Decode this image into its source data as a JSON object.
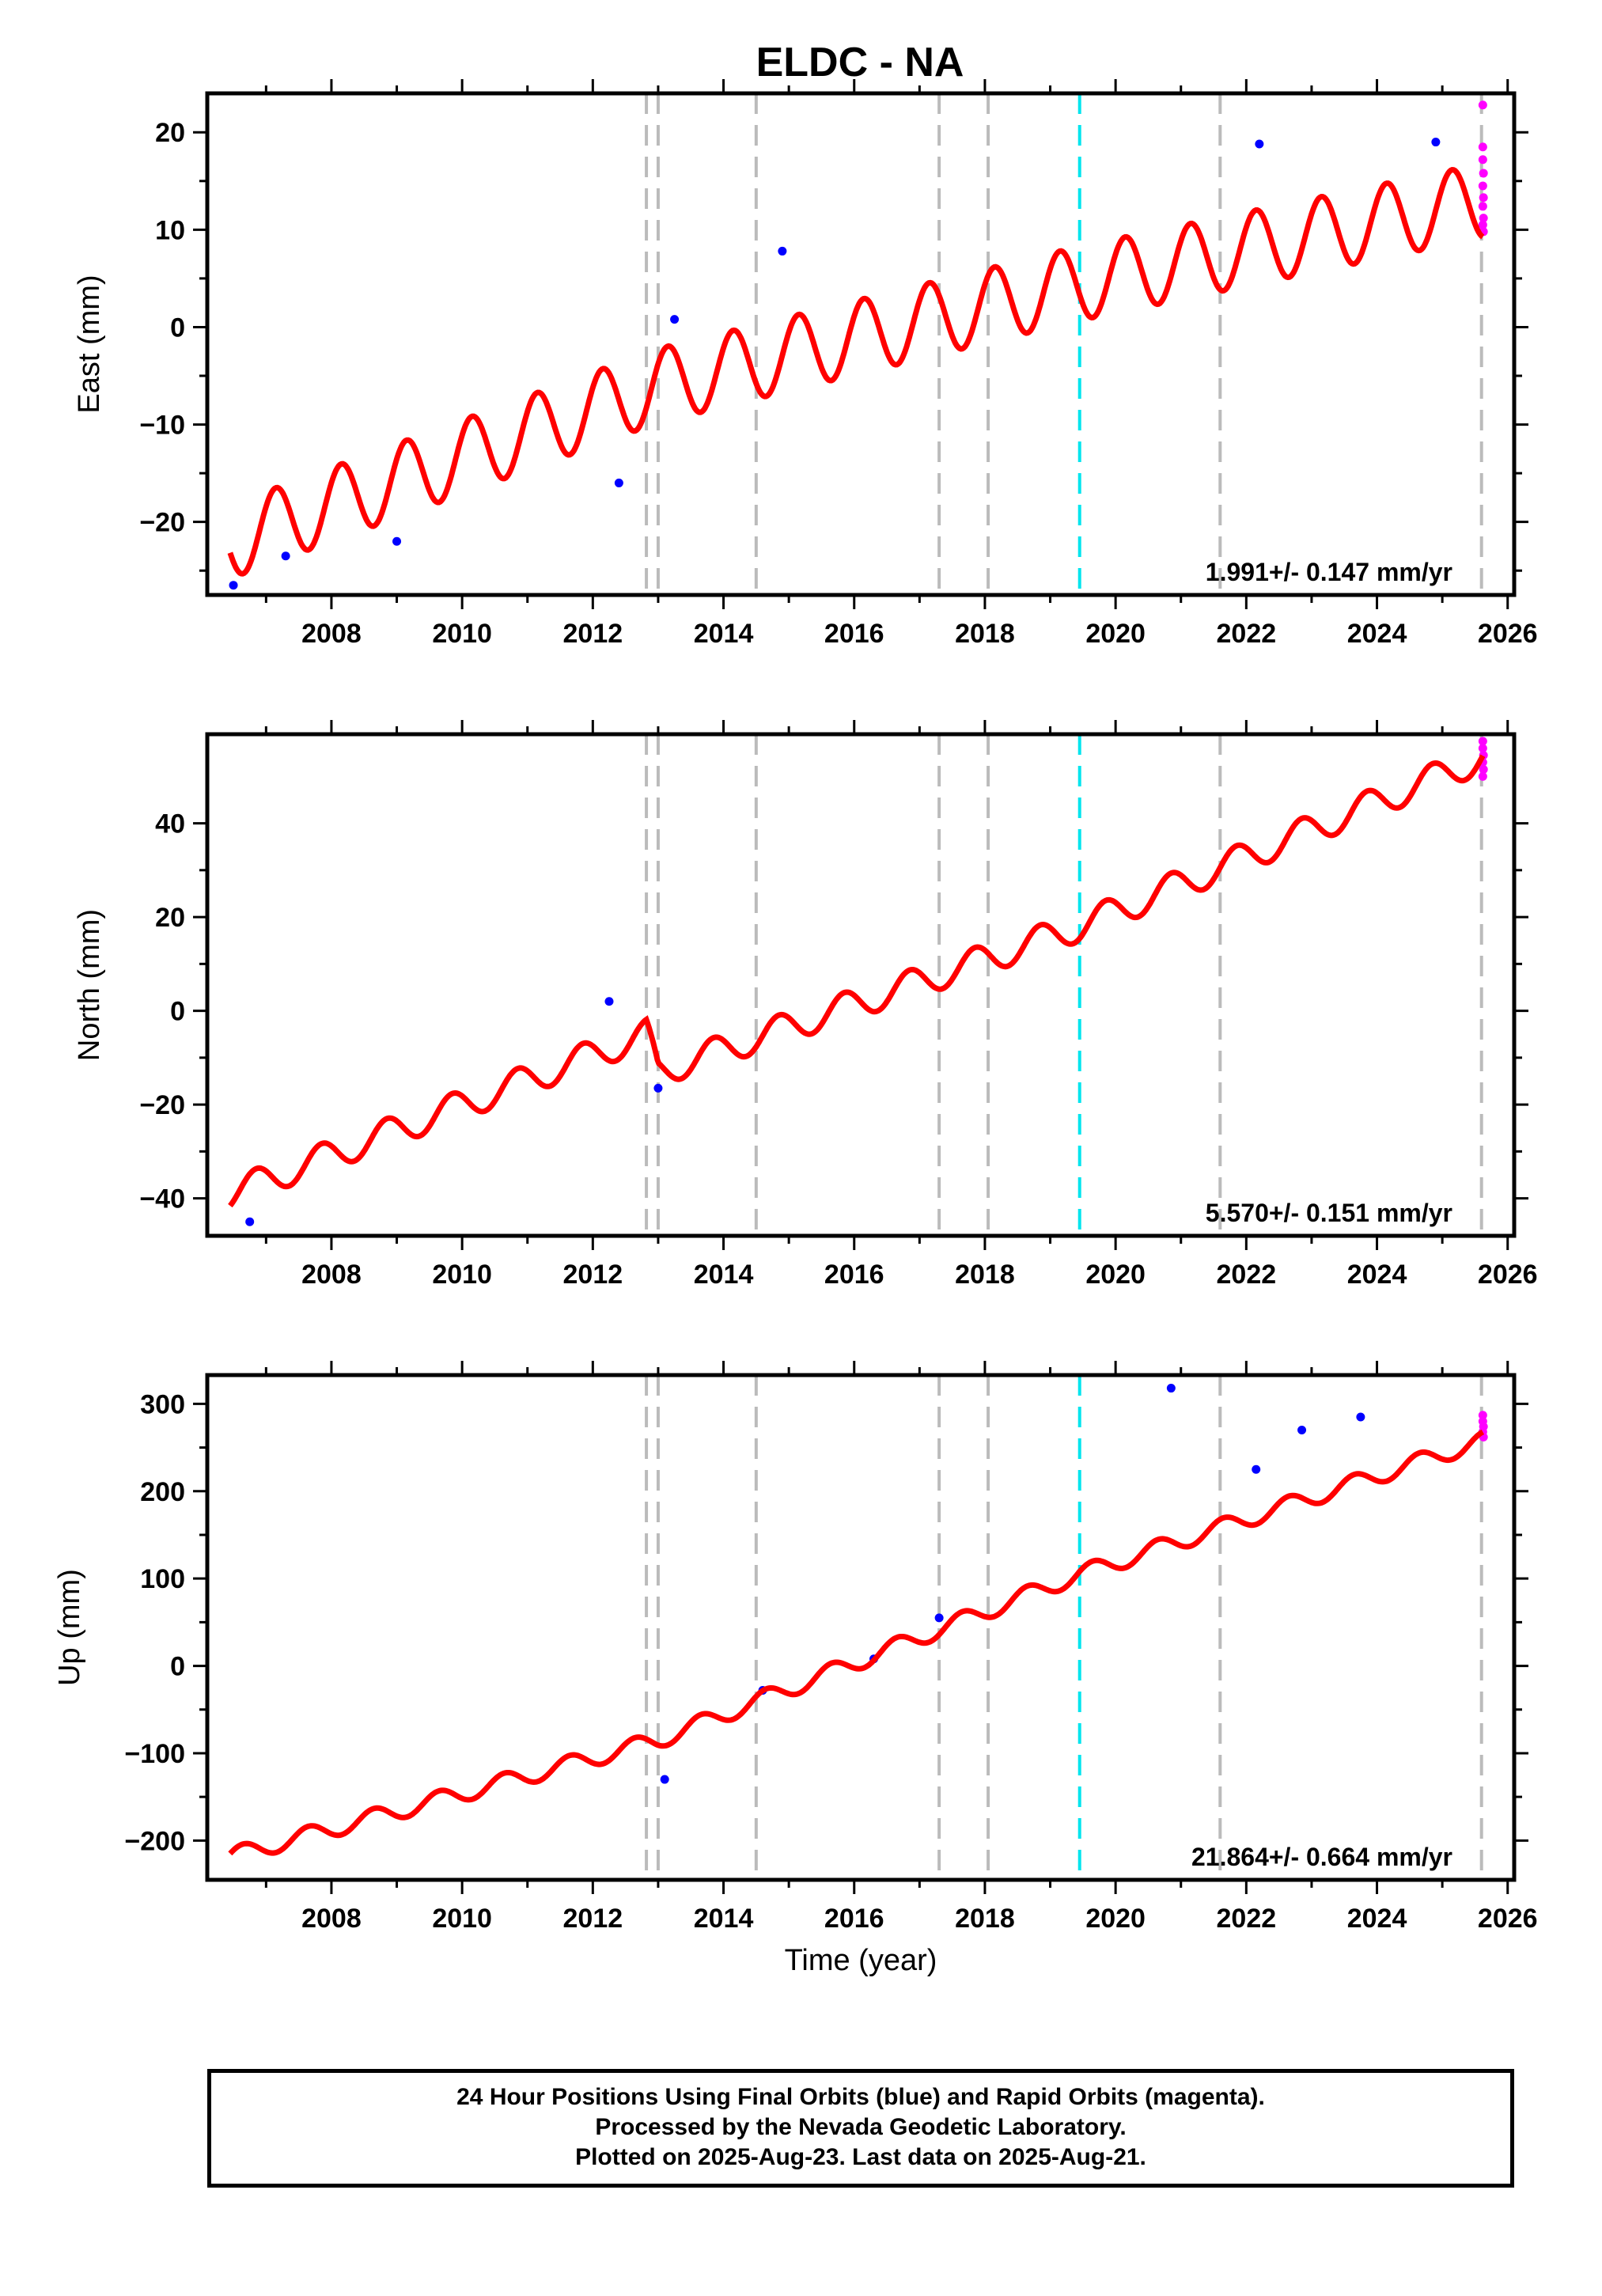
{
  "title": "ELDC - NA",
  "colors": {
    "final_orbits": "#0000ff",
    "rapid_orbits": "#ff00ff",
    "model": "#ff0000",
    "equipment_change": "#bbbbbb",
    "earthquake": "#00e5ee"
  },
  "event_lines": {
    "gray_dashed": [
      2012.82,
      2013.0,
      2014.5,
      2017.3,
      2018.05,
      2021.6,
      2025.6
    ],
    "cyan_dashed": [
      2019.45
    ]
  },
  "chart_data": [
    {
      "type": "scatter",
      "ylabel": "East (mm)",
      "xlabel": "",
      "xlim": [
        2006.1,
        2026.1
      ],
      "ylim": [
        -27.5,
        24
      ],
      "xticks": [
        "2008",
        "2010",
        "2012",
        "2014",
        "2016",
        "2018",
        "2020",
        "2022",
        "2024",
        "2026"
      ],
      "yticks": [
        "-20",
        "-10",
        "0",
        "10",
        "20"
      ],
      "rate_label": "1.991+/- 0.147 mm/yr",
      "model": {
        "start": 2006.45,
        "end": 2025.62,
        "anchors": [
          [
            2006.45,
            -22.0
          ],
          [
            2013.0,
            -6.0
          ],
          [
            2019.45,
            4.5
          ],
          [
            2025.62,
            13.0
          ]
        ],
        "seasonal_amplitude": 3.8,
        "seasonal_phase_year": 2006.9
      },
      "scatter_noise": 1.6,
      "outliers": [
        [
          2006.5,
          -26.5
        ],
        [
          2007.3,
          -23.5
        ],
        [
          2009.0,
          -22.0
        ],
        [
          2012.4,
          -16.0
        ],
        [
          2013.25,
          0.8
        ],
        [
          2014.9,
          7.8
        ],
        [
          2022.2,
          18.8
        ],
        [
          2024.9,
          19.0
        ]
      ],
      "rapid_points": [
        [
          2025.62,
          22.8
        ],
        [
          2025.62,
          18.5
        ],
        [
          2025.62,
          17.2
        ],
        [
          2025.63,
          15.8
        ],
        [
          2025.62,
          14.5
        ],
        [
          2025.63,
          13.3
        ],
        [
          2025.62,
          12.4
        ],
        [
          2025.63,
          11.2
        ],
        [
          2025.62,
          10.5
        ],
        [
          2025.63,
          9.8
        ]
      ]
    },
    {
      "type": "scatter",
      "ylabel": "North (mm)",
      "xlabel": "",
      "xlim": [
        2006.1,
        2026.1
      ],
      "ylim": [
        -48,
        59
      ],
      "xticks": [
        "2008",
        "2010",
        "2012",
        "2014",
        "2016",
        "2018",
        "2020",
        "2022",
        "2024",
        "2026"
      ],
      "yticks": [
        "-40",
        "-20",
        "0",
        "20",
        "40"
      ],
      "rate_label": "5.570+/- 0.151 mm/yr",
      "model": {
        "start": 2006.45,
        "end": 2025.62,
        "anchors": [
          [
            2006.45,
            -39.0
          ],
          [
            2012.82,
            -5.0
          ],
          [
            2013.0,
            -13.0
          ],
          [
            2019.45,
            18.0
          ],
          [
            2025.62,
            54.0
          ]
        ],
        "seasonal_amplitude": 3.2,
        "seasonal_phase_year": 2006.6
      },
      "scatter_noise": 1.7,
      "outliers": [
        [
          2006.75,
          -45.0
        ],
        [
          2012.25,
          2.0
        ],
        [
          2013.0,
          -16.5
        ]
      ],
      "rapid_points": [
        [
          2025.62,
          57.5
        ],
        [
          2025.62,
          56.0
        ],
        [
          2025.63,
          54.5
        ],
        [
          2025.62,
          53.0
        ],
        [
          2025.63,
          51.5
        ],
        [
          2025.62,
          50.0
        ]
      ]
    },
    {
      "type": "scatter",
      "ylabel": "Up (mm)",
      "xlabel": "Time (year)",
      "xlim": [
        2006.1,
        2026.1
      ],
      "ylim": [
        -245,
        333
      ],
      "xticks": [
        "2008",
        "2010",
        "2012",
        "2014",
        "2016",
        "2018",
        "2020",
        "2022",
        "2024",
        "2026"
      ],
      "yticks": [
        "-200",
        "-100",
        "0",
        "100",
        "200",
        "300"
      ],
      "rate_label": "21.864+/- 0.664 mm/yr",
      "model": {
        "start": 2006.45,
        "end": 2025.62,
        "anchors": [
          [
            2006.45,
            -218.0
          ],
          [
            2013.0,
            -85.0
          ],
          [
            2019.45,
            105.0
          ],
          [
            2025.62,
            258.0
          ]
        ],
        "seasonal_amplitude": 10.0,
        "seasonal_phase_year": 2006.4
      },
      "scatter_noise": 7.0,
      "outliers": [
        [
          2020.85,
          318.0
        ],
        [
          2023.75,
          285.0
        ],
        [
          2022.85,
          270.0
        ],
        [
          2022.15,
          225.0
        ],
        [
          2013.1,
          -130.0
        ],
        [
          2014.6,
          -28.0
        ],
        [
          2016.3,
          8.0
        ],
        [
          2017.3,
          55.0
        ]
      ],
      "rapid_points": [
        [
          2025.62,
          287.0
        ],
        [
          2025.62,
          280.0
        ],
        [
          2025.63,
          274.0
        ],
        [
          2025.62,
          268.0
        ],
        [
          2025.63,
          262.0
        ]
      ]
    }
  ],
  "caption": {
    "line1": "24 Hour Positions Using Final Orbits (blue) and Rapid Orbits (magenta).",
    "line2": "Processed by the Nevada Geodetic Laboratory.",
    "line3": "Plotted on 2025-Aug-23. Last data on 2025-Aug-21."
  }
}
